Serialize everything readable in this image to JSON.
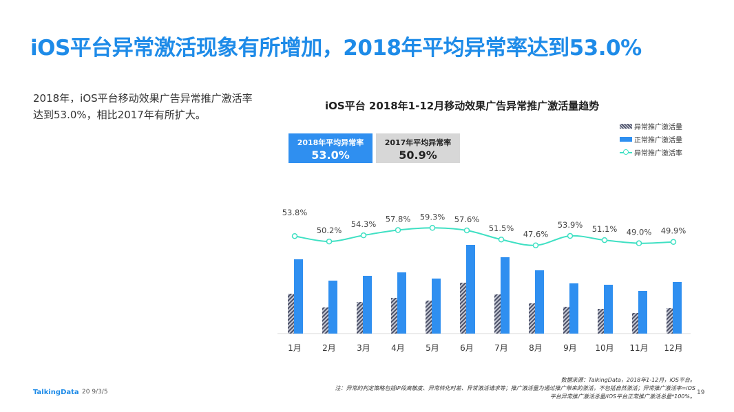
{
  "title": "iOS平台异常激活现象有所增加，2018年平均异常率达到53.0%",
  "description": "2018年，iOS平台移动效果广告异常推广激活率达到53.0%，相比2017年有所扩大。",
  "badges": [
    {
      "label": "2018年平均异常率",
      "value": "53.0%",
      "color": "#2f8ff0"
    },
    {
      "label": "2017年平均异常率",
      "value": "50.9%",
      "color": "#d7d7d7"
    }
  ],
  "chart_data": {
    "type": "bar",
    "title": "iOS平台  2018年1-12月移动效果广告异常推广激活量趋势",
    "categories": [
      "1月",
      "2月",
      "3月",
      "4月",
      "5月",
      "6月",
      "7月",
      "8月",
      "9月",
      "10月",
      "11月",
      "12月"
    ],
    "series": [
      {
        "name": "异常推广激活量",
        "type": "bar",
        "values": [
          58,
          38,
          46,
          52,
          48,
          74,
          57,
          44,
          39,
          36,
          30,
          37
        ],
        "color": "#5a5f77"
      },
      {
        "name": "正常推广激活量",
        "type": "bar",
        "values": [
          108,
          77,
          84,
          89,
          80,
          129,
          111,
          92,
          73,
          71,
          62,
          75
        ],
        "color": "#2f8ff0"
      },
      {
        "name": "异常推广激活率",
        "type": "line",
        "values": [
          53.8,
          50.2,
          54.3,
          57.8,
          59.3,
          57.6,
          51.5,
          47.6,
          53.9,
          51.1,
          49.0,
          49.9
        ],
        "labels": [
          "53.8%",
          "50.2%",
          "54.3%",
          "57.8%",
          "59.3%",
          "57.6%",
          "51.5%",
          "47.6%",
          "53.9%",
          "51.1%",
          "49.0%",
          "49.9%"
        ],
        "color": "#3fe0c3"
      }
    ],
    "bar_ylim": [
      0,
      130
    ],
    "rate_ylim": [
      30,
      70
    ],
    "legend_position": "top-right",
    "grid": false
  },
  "footer": {
    "logo": "TalkingData",
    "date": "20 9/3/5",
    "source": "数据来源：TalkingData，2018年1-12月，iOS平台。",
    "note1": "注：异常的判定策略包括IP段离散度、异常转化时差、异常激活请求等；推广激活量为通过推广带来的激活，不包括自然激活；异常推广激活率=iOS",
    "note2": "平台异常推广激活总量/iOS平台正常推广激活总量*100%。",
    "page": "19"
  }
}
